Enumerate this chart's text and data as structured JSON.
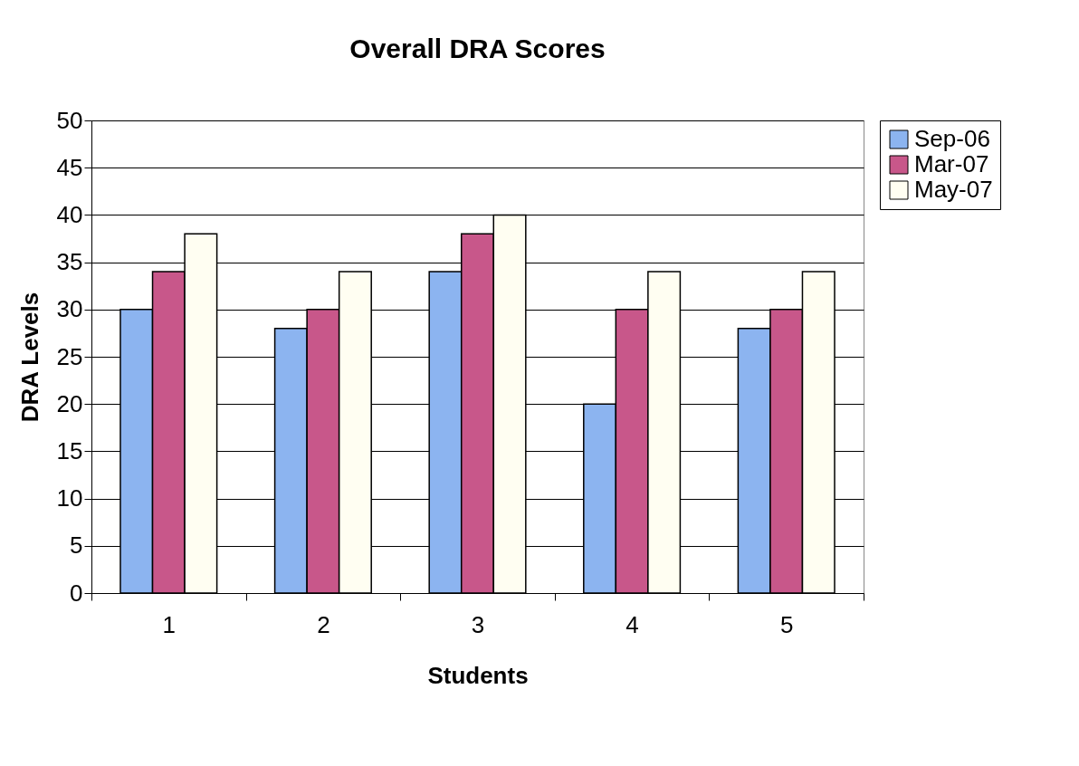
{
  "chart_data": {
    "type": "bar",
    "title": "Overall DRA Scores",
    "xlabel": "Students",
    "ylabel": "DRA Levels",
    "categories": [
      "1",
      "2",
      "3",
      "4",
      "5"
    ],
    "series": [
      {
        "name": "Sep-06",
        "color": "#8cb4f0",
        "values": [
          30,
          28,
          34,
          20,
          28
        ]
      },
      {
        "name": "Mar-07",
        "color": "#c8578a",
        "values": [
          34,
          30,
          38,
          30,
          30
        ]
      },
      {
        "name": "May-07",
        "color": "#fffef2",
        "values": [
          38,
          34,
          40,
          34,
          34
        ]
      }
    ],
    "ylim": [
      0,
      50
    ],
    "yticks": [
      0,
      5,
      10,
      15,
      20,
      25,
      30,
      35,
      40,
      45,
      50
    ],
    "grid": "y",
    "legend": "right"
  }
}
